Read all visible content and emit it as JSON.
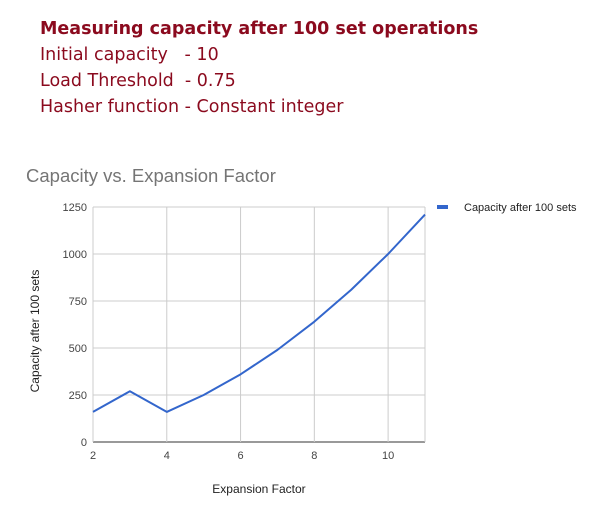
{
  "header": {
    "title": "Measuring capacity after 100 set operations",
    "lines": [
      "Initial capacity   - 10",
      "Load Threshold  - 0.75",
      "Hasher function - Constant integer"
    ]
  },
  "chart_data": {
    "type": "line",
    "title": "Capacity vs. Expansion Factor",
    "xlabel": "Expansion Factor",
    "ylabel": "Capacity after 100 sets",
    "xlim": [
      2,
      11
    ],
    "ylim": [
      0,
      1250
    ],
    "x_ticks": [
      2,
      4,
      6,
      8,
      10
    ],
    "y_ticks": [
      0,
      250,
      500,
      750,
      1000,
      1250
    ],
    "grid": true,
    "legend_position": "right",
    "series": [
      {
        "name": "Capacity after 100 sets",
        "color": "#3366cc",
        "x": [
          2,
          3,
          4,
          5,
          6,
          7,
          8,
          9,
          10,
          11
        ],
        "values": [
          160,
          270,
          160,
          250,
          360,
          490,
          640,
          810,
          1000,
          1210
        ]
      }
    ]
  }
}
